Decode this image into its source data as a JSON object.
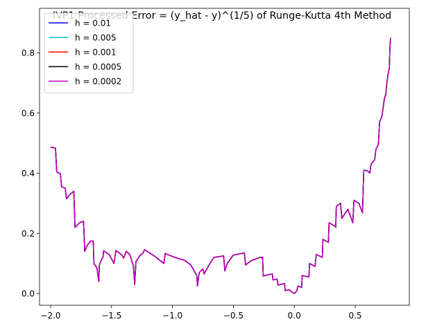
{
  "chart_data": {
    "type": "line",
    "title": "IVP1 Processed Error = (y_hat - y)^(1/5) of Runge-Kutta 4th Method",
    "x": [
      -2.0,
      -1.96,
      -1.95,
      -1.92,
      -1.91,
      -1.88,
      -1.87,
      -1.84,
      -1.81,
      -1.8,
      -1.76,
      -1.73,
      -1.72,
      -1.7,
      -1.67,
      -1.65,
      -1.645,
      -1.62,
      -1.605,
      -1.6,
      -1.58,
      -1.57,
      -1.565,
      -1.52,
      -1.48,
      -1.465,
      -1.42,
      -1.4,
      -1.38,
      -1.35,
      -1.32,
      -1.31,
      -1.3,
      -1.27,
      -1.24,
      -1.23,
      -1.15,
      -1.07,
      -1.06,
      -0.98,
      -0.9,
      -0.85,
      -0.8,
      -0.795,
      -0.78,
      -0.75,
      -0.74,
      -0.7,
      -0.66,
      -0.58,
      -0.57,
      -0.55,
      -0.5,
      -0.41,
      -0.4,
      -0.35,
      -0.28,
      -0.26,
      -0.255,
      -0.22,
      -0.18,
      -0.175,
      -0.14,
      -0.135,
      -0.08,
      -0.075,
      -0.04,
      -0.02,
      0.0,
      0.02,
      0.03,
      0.06,
      0.065,
      0.12,
      0.125,
      0.17,
      0.18,
      0.23,
      0.235,
      0.28,
      0.285,
      0.33,
      0.34,
      0.345,
      0.38,
      0.39,
      0.44,
      0.48,
      0.49,
      0.53,
      0.56,
      0.57,
      0.6,
      0.62,
      0.63,
      0.66,
      0.67,
      0.69,
      0.7,
      0.72,
      0.74,
      0.75,
      0.76,
      0.77,
      0.78,
      0.785,
      0.79
    ],
    "series": [
      {
        "name": "h = 0.01",
        "color": "#0000ff",
        "values": [
          0.487,
          0.483,
          0.405,
          0.398,
          0.355,
          0.35,
          0.315,
          0.33,
          0.34,
          0.22,
          0.236,
          0.24,
          0.14,
          0.16,
          0.175,
          0.175,
          0.1,
          0.085,
          0.04,
          0.095,
          0.115,
          0.12,
          0.142,
          0.13,
          0.1,
          0.143,
          0.13,
          0.118,
          0.14,
          0.13,
          0.09,
          0.03,
          0.105,
          0.125,
          0.135,
          0.146,
          0.125,
          0.1,
          0.133,
          0.12,
          0.11,
          0.095,
          0.06,
          0.025,
          0.07,
          0.082,
          0.065,
          0.095,
          0.12,
          0.125,
          0.075,
          0.1,
          0.128,
          0.135,
          0.095,
          0.11,
          0.12,
          0.12,
          0.058,
          0.062,
          0.065,
          0.045,
          0.048,
          0.028,
          0.033,
          0.01,
          0.012,
          0.005,
          0.0,
          0.008,
          0.025,
          0.02,
          0.06,
          0.055,
          0.1,
          0.09,
          0.13,
          0.12,
          0.18,
          0.17,
          0.235,
          0.225,
          0.22,
          0.29,
          0.3,
          0.25,
          0.28,
          0.235,
          0.31,
          0.3,
          0.268,
          0.41,
          0.408,
          0.4,
          0.43,
          0.445,
          0.48,
          0.495,
          0.57,
          0.59,
          0.65,
          0.66,
          0.7,
          0.73,
          0.75,
          0.82,
          0.85
        ]
      },
      {
        "name": "h = 0.005",
        "color": "#00bfbf",
        "values": [
          0.487,
          0.483,
          0.405,
          0.398,
          0.355,
          0.35,
          0.315,
          0.33,
          0.34,
          0.22,
          0.236,
          0.24,
          0.14,
          0.16,
          0.175,
          0.175,
          0.1,
          0.085,
          0.04,
          0.095,
          0.115,
          0.12,
          0.142,
          0.13,
          0.1,
          0.143,
          0.13,
          0.118,
          0.14,
          0.13,
          0.09,
          0.03,
          0.105,
          0.125,
          0.135,
          0.146,
          0.125,
          0.1,
          0.133,
          0.12,
          0.11,
          0.095,
          0.06,
          0.025,
          0.07,
          0.082,
          0.065,
          0.095,
          0.12,
          0.125,
          0.075,
          0.1,
          0.128,
          0.135,
          0.095,
          0.11,
          0.12,
          0.12,
          0.058,
          0.062,
          0.065,
          0.045,
          0.048,
          0.028,
          0.033,
          0.01,
          0.012,
          0.005,
          0.0,
          0.008,
          0.025,
          0.02,
          0.06,
          0.055,
          0.1,
          0.09,
          0.13,
          0.12,
          0.18,
          0.17,
          0.235,
          0.225,
          0.22,
          0.29,
          0.3,
          0.25,
          0.28,
          0.235,
          0.31,
          0.3,
          0.268,
          0.41,
          0.408,
          0.4,
          0.43,
          0.445,
          0.48,
          0.495,
          0.57,
          0.59,
          0.65,
          0.66,
          0.7,
          0.73,
          0.75,
          0.82,
          0.85
        ]
      },
      {
        "name": "h = 0.001",
        "color": "#ff0000",
        "values": [
          0.487,
          0.483,
          0.405,
          0.398,
          0.355,
          0.35,
          0.315,
          0.33,
          0.34,
          0.22,
          0.236,
          0.24,
          0.14,
          0.16,
          0.175,
          0.175,
          0.1,
          0.085,
          0.04,
          0.095,
          0.115,
          0.12,
          0.142,
          0.13,
          0.1,
          0.143,
          0.13,
          0.118,
          0.14,
          0.13,
          0.09,
          0.03,
          0.105,
          0.125,
          0.135,
          0.146,
          0.125,
          0.1,
          0.133,
          0.12,
          0.11,
          0.095,
          0.06,
          0.025,
          0.07,
          0.082,
          0.065,
          0.095,
          0.12,
          0.125,
          0.075,
          0.1,
          0.128,
          0.135,
          0.095,
          0.11,
          0.12,
          0.12,
          0.058,
          0.062,
          0.065,
          0.045,
          0.048,
          0.028,
          0.033,
          0.01,
          0.012,
          0.005,
          0.0,
          0.008,
          0.025,
          0.02,
          0.06,
          0.055,
          0.1,
          0.09,
          0.13,
          0.12,
          0.18,
          0.17,
          0.235,
          0.225,
          0.22,
          0.29,
          0.3,
          0.25,
          0.28,
          0.235,
          0.31,
          0.3,
          0.268,
          0.41,
          0.408,
          0.4,
          0.43,
          0.445,
          0.48,
          0.495,
          0.57,
          0.59,
          0.65,
          0.66,
          0.7,
          0.73,
          0.75,
          0.82,
          0.85
        ]
      },
      {
        "name": "h = 0.0005",
        "color": "#000000",
        "values": [
          0.487,
          0.483,
          0.405,
          0.398,
          0.355,
          0.35,
          0.315,
          0.33,
          0.34,
          0.22,
          0.236,
          0.24,
          0.14,
          0.16,
          0.175,
          0.175,
          0.1,
          0.085,
          0.04,
          0.095,
          0.115,
          0.12,
          0.142,
          0.13,
          0.1,
          0.143,
          0.13,
          0.118,
          0.14,
          0.13,
          0.09,
          0.03,
          0.105,
          0.125,
          0.135,
          0.146,
          0.125,
          0.1,
          0.133,
          0.12,
          0.11,
          0.095,
          0.06,
          0.025,
          0.07,
          0.082,
          0.065,
          0.095,
          0.12,
          0.125,
          0.075,
          0.1,
          0.128,
          0.135,
          0.095,
          0.11,
          0.12,
          0.12,
          0.058,
          0.062,
          0.065,
          0.045,
          0.048,
          0.028,
          0.033,
          0.01,
          0.012,
          0.005,
          0.0,
          0.008,
          0.025,
          0.02,
          0.06,
          0.055,
          0.1,
          0.09,
          0.13,
          0.12,
          0.18,
          0.17,
          0.235,
          0.225,
          0.22,
          0.29,
          0.3,
          0.25,
          0.28,
          0.235,
          0.31,
          0.3,
          0.268,
          0.41,
          0.408,
          0.4,
          0.43,
          0.445,
          0.48,
          0.495,
          0.57,
          0.59,
          0.65,
          0.66,
          0.7,
          0.73,
          0.75,
          0.82,
          0.85
        ]
      },
      {
        "name": "h = 0.0002",
        "color": "#bf00bf",
        "values": [
          0.487,
          0.483,
          0.405,
          0.398,
          0.355,
          0.35,
          0.315,
          0.33,
          0.34,
          0.22,
          0.236,
          0.24,
          0.14,
          0.16,
          0.175,
          0.175,
          0.1,
          0.085,
          0.04,
          0.095,
          0.115,
          0.12,
          0.142,
          0.13,
          0.1,
          0.143,
          0.13,
          0.118,
          0.14,
          0.13,
          0.09,
          0.03,
          0.105,
          0.125,
          0.135,
          0.146,
          0.125,
          0.1,
          0.133,
          0.12,
          0.11,
          0.095,
          0.06,
          0.025,
          0.07,
          0.082,
          0.065,
          0.095,
          0.12,
          0.125,
          0.075,
          0.1,
          0.128,
          0.135,
          0.095,
          0.11,
          0.12,
          0.12,
          0.058,
          0.062,
          0.065,
          0.045,
          0.048,
          0.028,
          0.033,
          0.01,
          0.012,
          0.005,
          0.0,
          0.008,
          0.025,
          0.02,
          0.06,
          0.055,
          0.1,
          0.09,
          0.13,
          0.12,
          0.18,
          0.17,
          0.235,
          0.225,
          0.22,
          0.29,
          0.3,
          0.25,
          0.28,
          0.235,
          0.31,
          0.3,
          0.268,
          0.41,
          0.408,
          0.4,
          0.43,
          0.445,
          0.48,
          0.495,
          0.57,
          0.59,
          0.65,
          0.66,
          0.7,
          0.73,
          0.75,
          0.82,
          0.85
        ]
      }
    ],
    "xlim": [
      -2.091,
      0.944
    ],
    "ylim": [
      -0.039,
      0.948
    ],
    "xticks": [
      {
        "value": -2.0,
        "label": "−2.0"
      },
      {
        "value": -1.5,
        "label": "−1.5"
      },
      {
        "value": -1.0,
        "label": "−1.0"
      },
      {
        "value": -0.5,
        "label": "−0.5"
      },
      {
        "value": 0.0,
        "label": "0.0"
      },
      0.5
    ],
    "yticks": [
      {
        "value": 0.0,
        "label": "0.0"
      },
      0.2,
      0.4,
      0.6,
      0.8
    ],
    "grid": false,
    "legend": "upper left"
  }
}
